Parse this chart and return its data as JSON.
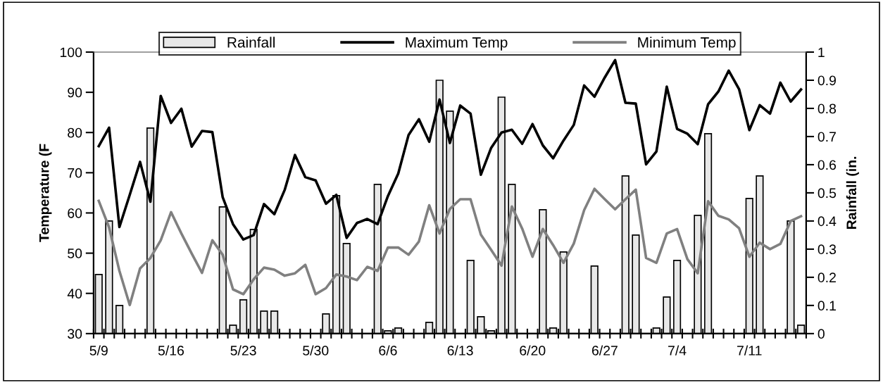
{
  "chart_data": {
    "type": "bar",
    "categories": [
      "5/9",
      null,
      null,
      null,
      null,
      null,
      null,
      "5/16",
      null,
      null,
      null,
      null,
      null,
      null,
      "5/23",
      null,
      null,
      null,
      null,
      null,
      null,
      "5/30",
      null,
      null,
      null,
      null,
      null,
      null,
      "6/6",
      null,
      null,
      null,
      null,
      null,
      null,
      "6/13",
      null,
      null,
      null,
      null,
      null,
      null,
      "6/20",
      null,
      null,
      null,
      null,
      null,
      null,
      "6/27",
      null,
      null,
      null,
      null,
      null,
      null,
      "7/4",
      null,
      null,
      null,
      null,
      null,
      null,
      "7/11",
      null,
      null,
      null,
      null,
      null
    ],
    "series": [
      {
        "name": "Rainfall",
        "axis": "y2",
        "color": "#e8e8e8",
        "values": [
          0.21,
          0.4,
          0.1,
          null,
          null,
          0.73,
          null,
          null,
          null,
          null,
          null,
          null,
          0.45,
          0.03,
          0.12,
          0.37,
          0.08,
          0.08,
          null,
          null,
          null,
          null,
          0.07,
          0.49,
          0.32,
          null,
          null,
          0.53,
          0.01,
          0.02,
          null,
          null,
          0.04,
          0.9,
          0.79,
          null,
          0.26,
          0.06,
          0.01,
          0.84,
          0.53,
          null,
          null,
          0.44,
          0.02,
          0.29,
          null,
          null,
          0.24,
          null,
          null,
          0.56,
          0.35,
          null,
          0.02,
          0.13,
          0.26,
          null,
          0.42,
          0.71,
          null,
          null,
          null,
          0.48,
          0.56,
          null,
          null,
          0.4,
          0.03
        ]
      },
      {
        "name": "Maximum Temp",
        "type": "line",
        "color": "#000000",
        "values": [
          76.6,
          81.2,
          56.5,
          64.5,
          72.7,
          62.8,
          89.1,
          82.4,
          85.9,
          76.5,
          80.4,
          80.1,
          63.9,
          57.2,
          53.4,
          54.5,
          62.2,
          59.7,
          65.7,
          74.4,
          68.9,
          68.1,
          62.3,
          64.5,
          53.8,
          57.5,
          58.5,
          57.2,
          64.2,
          69.8,
          79.4,
          83.3,
          77.7,
          88.2,
          77.4,
          86.7,
          84.7,
          69.5,
          76.2,
          80.0,
          80.7,
          77.2,
          82.1,
          76.8,
          73.6,
          78.0,
          81.9,
          91.7,
          88.9,
          93.7,
          98.0,
          87.4,
          87.2,
          72.1,
          75.3,
          91.4,
          80.9,
          79.7,
          77.1,
          87.0,
          90.2,
          95.4,
          90.8,
          80.6,
          86.8,
          84.7,
          92.4,
          87.7,
          90.7
        ]
      },
      {
        "name": "Minimum Temp",
        "type": "line",
        "color": "#808080",
        "values": [
          63.0,
          56.4,
          45.6,
          37.1,
          46.2,
          48.8,
          53.2,
          60.2,
          54.9,
          49.9,
          45.1,
          53.2,
          49.6,
          41.0,
          39.8,
          43.5,
          46.4,
          45.9,
          44.4,
          45.0,
          47.1,
          39.8,
          41.3,
          44.7,
          44.2,
          43.3,
          46.6,
          45.6,
          51.4,
          51.4,
          49.6,
          52.9,
          61.9,
          54.9,
          61.0,
          63.4,
          63.4,
          54.6,
          50.8,
          46.9,
          61.6,
          56.1,
          49.1,
          56.0,
          52.0,
          47.6,
          52.4,
          60.7,
          66.0,
          63.4,
          60.9,
          63.4,
          65.8,
          48.8,
          47.6,
          54.9,
          56.0,
          48.5,
          45.0,
          62.9,
          59.3,
          58.4,
          56.2,
          49.1,
          52.6,
          51.0,
          52.3,
          58.0,
          59.2
        ]
      }
    ],
    "ylabel": "Temperature (F",
    "y2label": "Rainfall (in.",
    "ylim": [
      30,
      100
    ],
    "yticks": [
      30,
      40,
      50,
      60,
      70,
      80,
      90,
      100
    ],
    "y2lim": [
      0,
      1
    ],
    "y2ticks": [
      0,
      0.1,
      0.2,
      0.3,
      0.4,
      0.5,
      0.6,
      0.7,
      0.8,
      0.9,
      1
    ],
    "legend": "top",
    "grid": false,
    "marker": "none",
    "line_style": "solid"
  }
}
